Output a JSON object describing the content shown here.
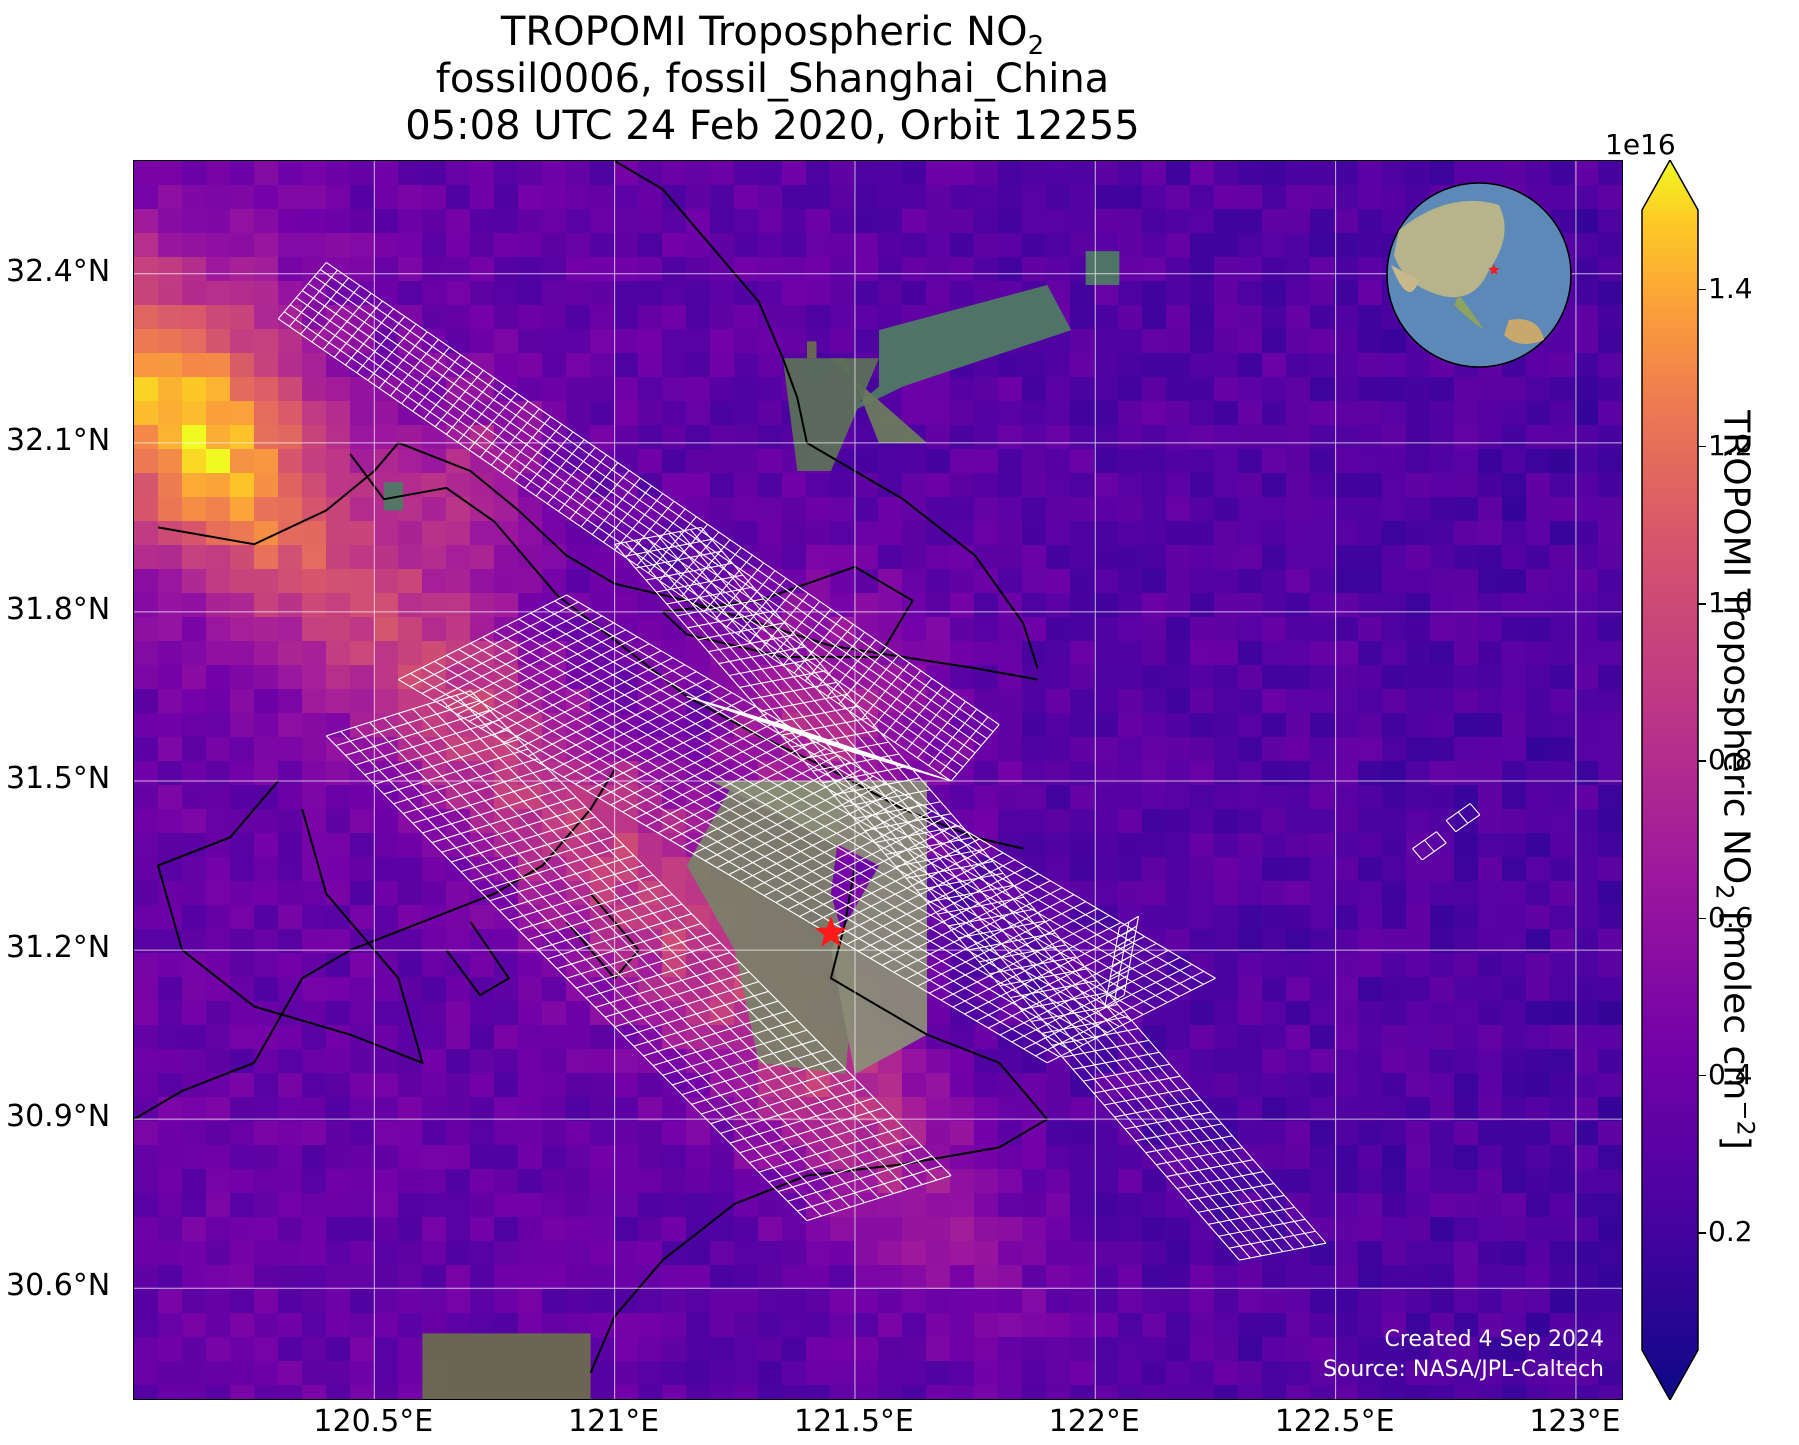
{
  "title": {
    "line1_main": "TROPOMI Tropospheric NO",
    "line1_sub": "2",
    "line2": "fossil0006, fossil_Shanghai_China",
    "line3": "05:08 UTC 24 Feb 2020, Orbit 12255"
  },
  "map": {
    "lon_range": [
      120.0,
      123.1
    ],
    "lat_range": [
      30.4,
      32.6
    ],
    "y_ticks": [
      "32.4°N",
      "32.1°N",
      "31.8°N",
      "31.5°N",
      "31.2°N",
      "30.9°N",
      "30.6°N"
    ],
    "x_ticks": [
      "120.5°E",
      "121°E",
      "121.5°E",
      "122°E",
      "122.5°E",
      "123°E"
    ],
    "target_marker": {
      "lon": 121.45,
      "lat": 31.23,
      "symbol": "red-star"
    },
    "credits_line1": "Created 4 Sep 2024",
    "credits_line2": "Source: NASA/JPL-Caltech"
  },
  "colorbar": {
    "exponent": "1e16",
    "ticks": [
      "1.4",
      "1.2",
      "1.0",
      "0.8",
      "0.6",
      "0.4",
      "0.2"
    ],
    "title_main": "TROPOMI Tropospheric NO",
    "title_sub": "2",
    "title_unit": " [molec cm",
    "title_unit_sup": "−2",
    "title_close": "]",
    "colormap": "plasma",
    "range": [
      0.05,
      1.5
    ]
  },
  "colors": {
    "accent_star": "#ff1a1a",
    "grid": "#ffffff"
  }
}
